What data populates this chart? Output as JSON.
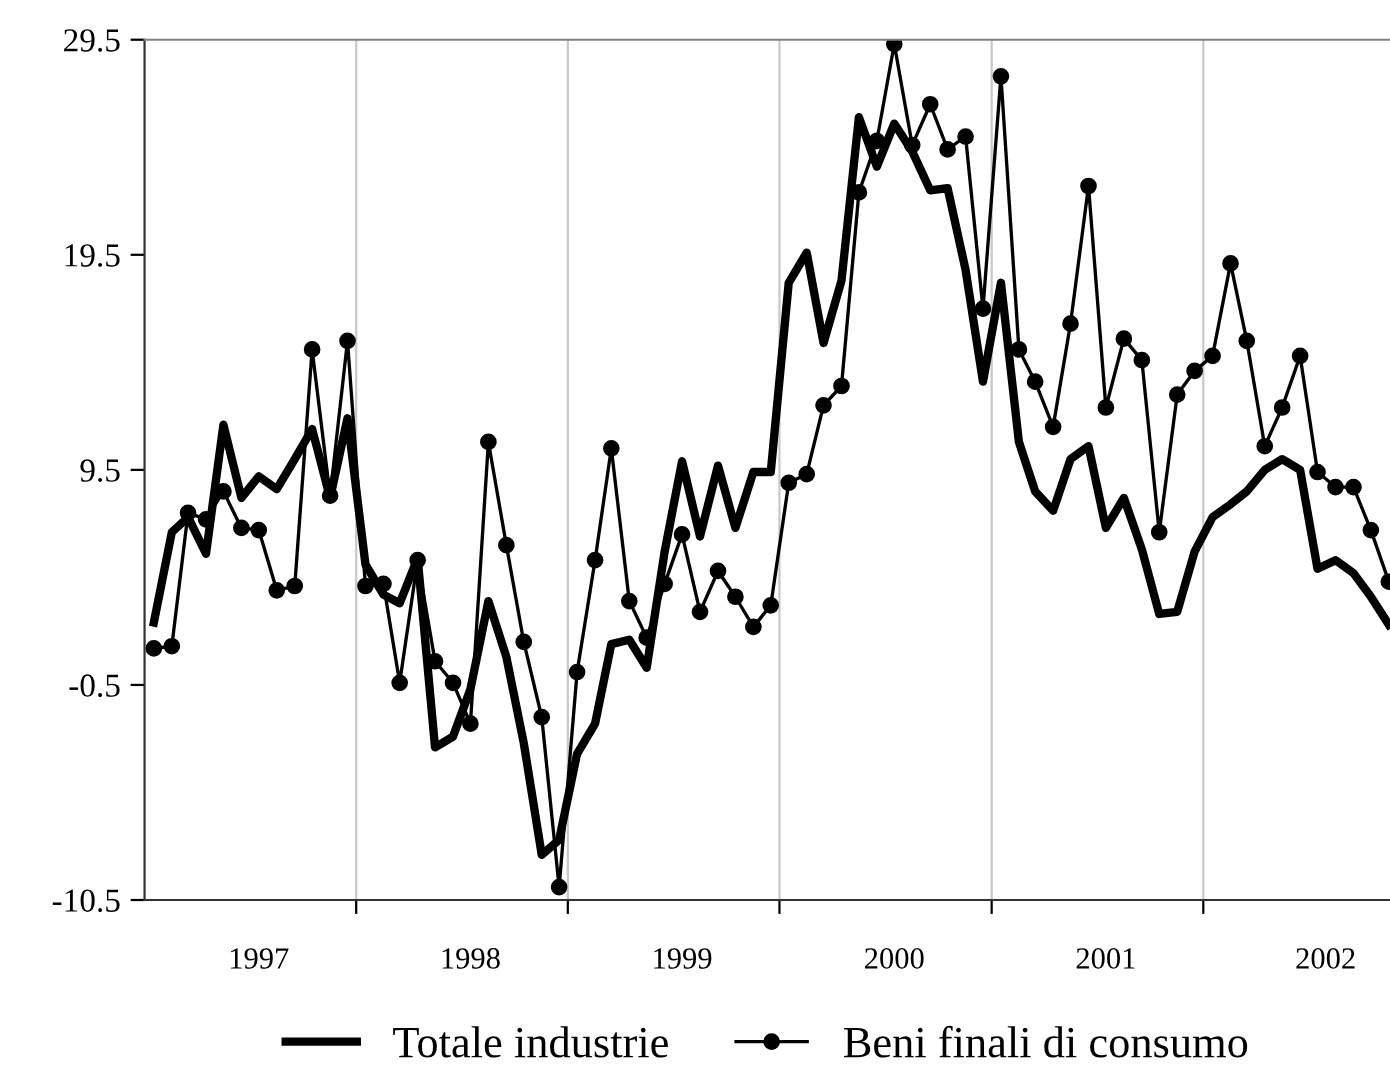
{
  "chart_data": {
    "type": "line",
    "x": [
      "1997-01",
      "1997-02",
      "1997-03",
      "1997-04",
      "1997-05",
      "1997-06",
      "1997-07",
      "1997-08",
      "1997-09",
      "1997-10",
      "1997-11",
      "1997-12",
      "1998-01",
      "1998-02",
      "1998-03",
      "1998-04",
      "1998-05",
      "1998-06",
      "1998-07",
      "1998-08",
      "1998-09",
      "1998-10",
      "1998-11",
      "1998-12",
      "1999-01",
      "1999-02",
      "1999-03",
      "1999-04",
      "1999-05",
      "1999-06",
      "1999-07",
      "1999-08",
      "1999-09",
      "1999-10",
      "1999-11",
      "1999-12",
      "2000-01",
      "2000-02",
      "2000-03",
      "2000-04",
      "2000-05",
      "2000-06",
      "2000-07",
      "2000-08",
      "2000-09",
      "2000-10",
      "2000-11",
      "2000-12",
      "2001-01",
      "2001-02",
      "2001-03",
      "2001-04",
      "2001-05",
      "2001-06",
      "2001-07",
      "2001-08",
      "2001-09",
      "2001-10",
      "2001-11",
      "2001-12",
      "2002-01",
      "2002-02",
      "2002-03",
      "2002-04",
      "2002-05",
      "2002-06",
      "2002-07",
      "2002-08",
      "2002-09",
      "2002-10",
      "2002-11"
    ],
    "series": [
      {
        "name": "Totale industrie",
        "color": "#000000",
        "marker": "none",
        "values": [
          2.4,
          6.6,
          7.3,
          5.6,
          11.6,
          8.2,
          9.2,
          8.6,
          10.0,
          11.4,
          8.2,
          11.9,
          5.1,
          3.7,
          3.3,
          5.4,
          -3.4,
          -2.9,
          -0.7,
          3.4,
          0.8,
          -3.2,
          -8.4,
          -7.7,
          -3.7,
          -2.3,
          1.4,
          1.6,
          0.3,
          5.7,
          9.9,
          6.4,
          9.7,
          6.8,
          9.4,
          9.4,
          18.2,
          19.6,
          15.4,
          18.3,
          25.9,
          23.6,
          25.6,
          24.3,
          22.5,
          22.6,
          18.8,
          13.6,
          18.2,
          10.8,
          8.5,
          7.6,
          10.0,
          10.6,
          6.8,
          8.2,
          5.8,
          2.8,
          2.9,
          5.7,
          7.3,
          7.9,
          8.5,
          9.5,
          10.0,
          9.5,
          4.9,
          5.3,
          4.7,
          3.6,
          2.3
        ]
      },
      {
        "name": "Beni finali di consumo",
        "color": "#000000",
        "marker": "circle",
        "values": [
          1.2,
          1.3,
          7.5,
          7.2,
          8.5,
          6.8,
          6.7,
          3.9,
          4.1,
          15.1,
          8.3,
          15.5,
          4.1,
          4.2,
          -0.4,
          5.3,
          0.6,
          -0.4,
          -2.3,
          10.8,
          6.0,
          1.5,
          -2.0,
          -9.9,
          0.1,
          5.3,
          10.5,
          3.4,
          1.7,
          4.2,
          6.5,
          2.9,
          4.8,
          3.6,
          2.2,
          3.2,
          8.9,
          9.3,
          12.5,
          13.4,
          22.4,
          24.8,
          29.3,
          24.6,
          26.5,
          24.4,
          25.0,
          17.0,
          27.8,
          15.1,
          13.6,
          11.5,
          16.3,
          22.7,
          12.4,
          15.6,
          14.6,
          6.6,
          13.0,
          14.1,
          14.8,
          19.1,
          15.5,
          10.6,
          12.4,
          14.8,
          9.4,
          8.7,
          8.7,
          6.7,
          4.3
        ]
      }
    ],
    "xlim": [
      "1996-12-16",
      "2002-11-03"
    ],
    "xticks": [
      {
        "value": "1997-07-01",
        "label": "1997"
      },
      {
        "value": "1997-12-16",
        "label": null
      },
      {
        "value": "1998-07-01",
        "label": "1998"
      },
      {
        "value": "1998-12-16",
        "label": null
      },
      {
        "value": "1999-07-01",
        "label": "1999"
      },
      {
        "value": "1999-12-16",
        "label": null
      },
      {
        "value": "2000-07-01",
        "label": "2000"
      },
      {
        "value": "2000-12-16",
        "label": null
      },
      {
        "value": "2001-07-01",
        "label": "2001"
      },
      {
        "value": "2001-12-16",
        "label": null
      },
      {
        "value": "2002-07-15",
        "label": "2002"
      }
    ],
    "ylim": [
      -10.5,
      29.5
    ],
    "yticks": [
      -10.5,
      -0.5,
      9.5,
      19.5,
      29.5
    ],
    "grid": "x",
    "legend": "bottom",
    "line_style": "solid"
  }
}
